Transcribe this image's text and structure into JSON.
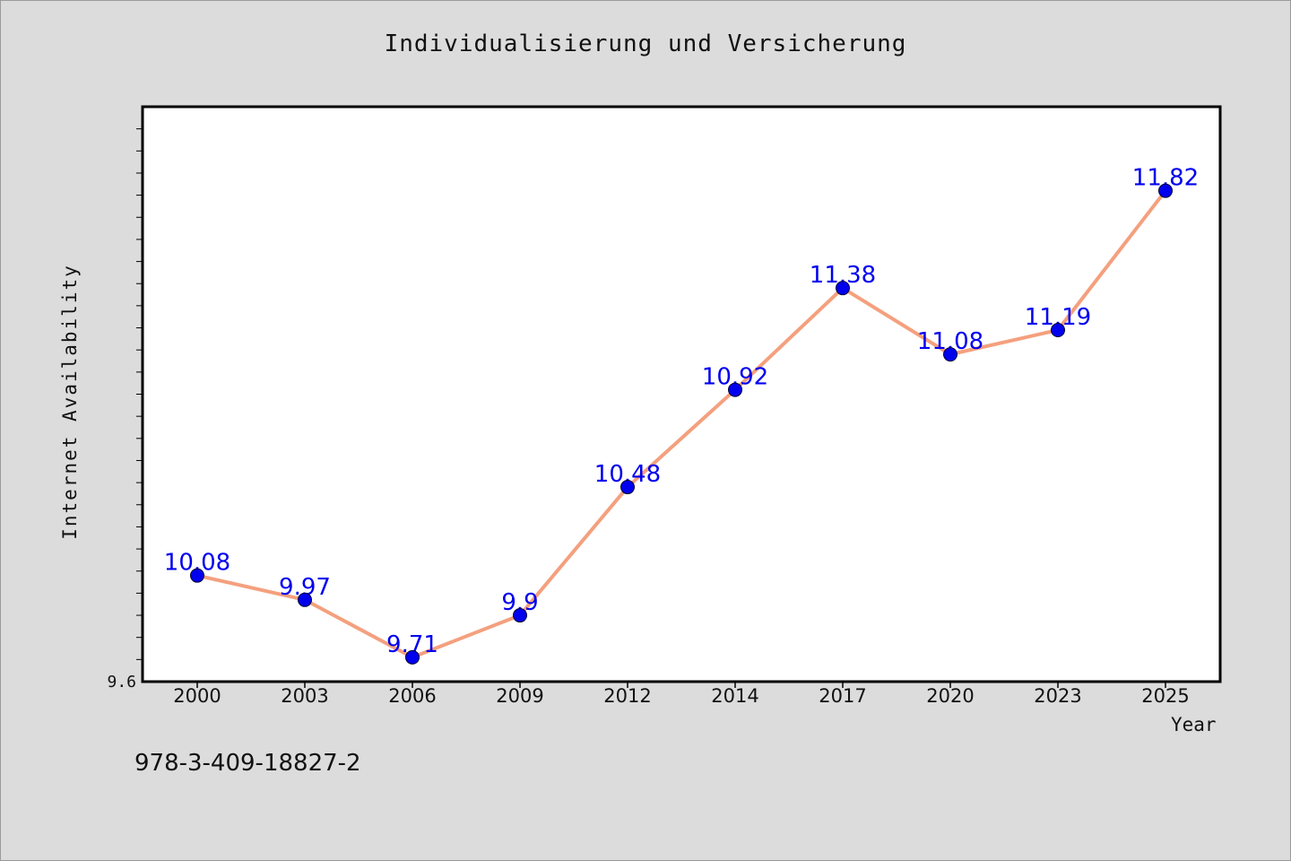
{
  "chart_data": {
    "type": "line",
    "title": "Individualisierung und Versicherung",
    "xlabel": "Year",
    "ylabel": "Internet Availability",
    "categories": [
      "2000",
      "2003",
      "2006",
      "2009",
      "2012",
      "2014",
      "2017",
      "2020",
      "2023",
      "2025"
    ],
    "series": [
      {
        "values": [
          10.08,
          9.97,
          9.71,
          9.9,
          10.48,
          10.92,
          11.38,
          11.08,
          11.19,
          11.82
        ],
        "data_labels": [
          "10.08",
          "9.97",
          "9.71",
          "9.9",
          "10.48",
          "10.92",
          "11.38",
          "11.08",
          "11.19",
          "11.82"
        ]
      }
    ],
    "ylim": [
      9.6,
      12.2
    ],
    "y_tick_labels": [
      "9.6"
    ],
    "grid": false,
    "line_color": "#f4a07e",
    "marker_color": "#0000ee",
    "label_color": "#0000ee"
  },
  "footer": {
    "code": "978-3-409-18827-2"
  }
}
